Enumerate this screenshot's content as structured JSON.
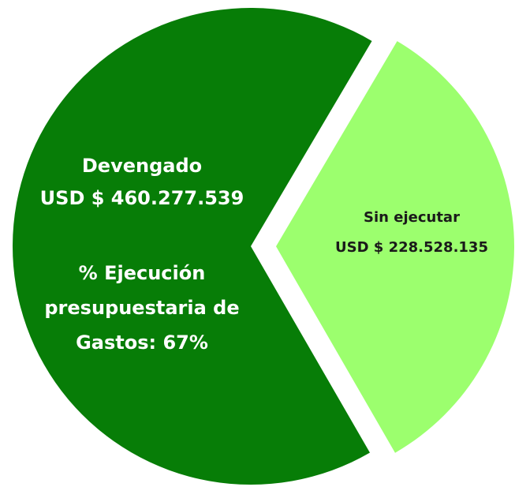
{
  "chart_data": {
    "type": "pie",
    "categories": [
      "Devengado",
      "Sin ejecutar"
    ],
    "values": [
      460277539,
      228528135
    ],
    "value_labels": [
      "USD $ 460.277.539",
      "USD $ 228.528.135"
    ],
    "colors": [
      "#077d07",
      "#9cff6e"
    ],
    "annotation": [
      "% Ejecución",
      "presupuestaria de",
      "Gastos: 67%"
    ]
  }
}
